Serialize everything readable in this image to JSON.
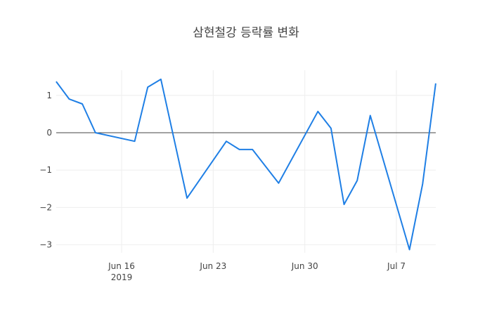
{
  "chart_data": {
    "type": "line",
    "title": "삼현철강 등락률 변화",
    "xlabel": "",
    "ylabel": "",
    "x": [
      "2019-06-11",
      "2019-06-12",
      "2019-06-13",
      "2019-06-14",
      "2019-06-17",
      "2019-06-18",
      "2019-06-19",
      "2019-06-21",
      "2019-06-24",
      "2019-06-25",
      "2019-06-26",
      "2019-06-28",
      "2019-07-01",
      "2019-07-02",
      "2019-07-03",
      "2019-07-04",
      "2019-07-05",
      "2019-07-08",
      "2019-07-09",
      "2019-07-10"
    ],
    "series": [
      {
        "name": "등락률",
        "color": "#1f7fe5",
        "values": [
          1.37,
          0.9,
          0.77,
          0.0,
          -0.23,
          1.22,
          1.43,
          -1.75,
          -0.23,
          -0.45,
          -0.45,
          -1.35,
          0.57,
          0.12,
          -1.92,
          -1.28,
          0.46,
          -3.13,
          -1.37,
          1.32
        ]
      }
    ],
    "x_ticks": [
      {
        "date": "2019-06-16",
        "label": "Jun 16",
        "sublabel": "2019"
      },
      {
        "date": "2019-06-23",
        "label": "Jun 23",
        "sublabel": ""
      },
      {
        "date": "2019-06-30",
        "label": "Jun 30",
        "sublabel": ""
      },
      {
        "date": "2019-07-07",
        "label": "Jul 7",
        "sublabel": ""
      }
    ],
    "y_ticks": [
      1,
      0,
      -1,
      -2,
      -3
    ],
    "y_tick_labels": [
      "1",
      "0",
      "−1",
      "−2",
      "−3"
    ],
    "ylim": [
      -3.2,
      1.65
    ],
    "grid": true,
    "zero_line": true,
    "legend": "none"
  }
}
